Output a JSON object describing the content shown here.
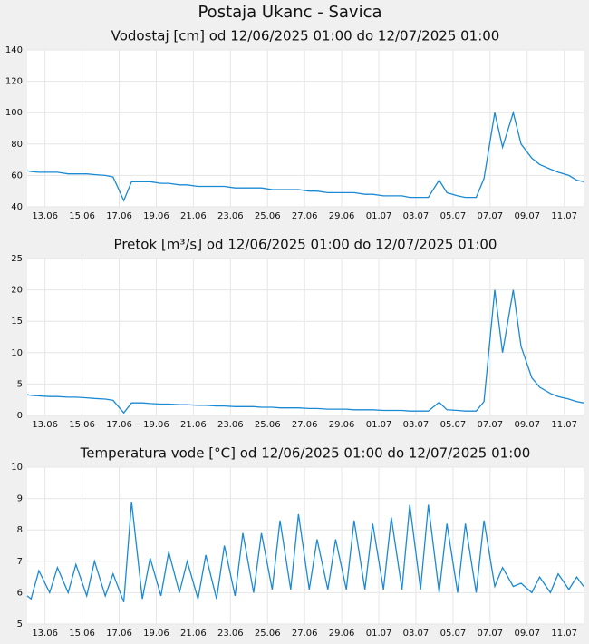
{
  "title": "Postaja Ukanc - Savica",
  "chart_data": [
    {
      "type": "line",
      "title": "Vodostaj [cm] od 12/06/2025 01:00 do 12/07/2025 01:00",
      "color": "#1a8ad4",
      "grid": true,
      "x": [
        0.04,
        0.25,
        0.67,
        1.25,
        1.67,
        2.25,
        2.67,
        3.25,
        3.67,
        4.25,
        4.67,
        5.25,
        5.67,
        6.25,
        6.67,
        7.25,
        7.67,
        8.25,
        8.67,
        9.25,
        9.67,
        10.25,
        10.67,
        11.25,
        11.67,
        12.25,
        12.67,
        13.25,
        13.67,
        14.25,
        14.67,
        15.25,
        15.67,
        16.25,
        16.67,
        17.25,
        17.67,
        18.25,
        18.67,
        19.25,
        19.67,
        20.25,
        20.67,
        21.25,
        21.67,
        22.25,
        22.67,
        23.25,
        23.67,
        24.25,
        24.67,
        25.25,
        25.67,
        26.25,
        26.67,
        27.25,
        27.67,
        28.25,
        28.67,
        29.25,
        29.67,
        30.04
      ],
      "values": [
        63,
        62.5,
        62,
        62,
        62,
        61,
        61,
        61,
        60.5,
        60,
        59,
        44,
        56,
        56,
        56,
        55,
        55,
        54,
        54,
        53,
        53,
        53,
        53,
        52,
        52,
        52,
        52,
        51,
        51,
        51,
        51,
        50,
        50,
        49,
        49,
        49,
        49,
        48,
        48,
        47,
        47,
        47,
        46,
        46,
        46,
        57,
        49,
        47,
        46,
        46,
        58,
        100,
        78,
        100,
        80,
        71,
        67,
        64,
        62,
        60,
        57,
        56
      ],
      "xlim": [
        0.04,
        30.04
      ],
      "xticks": [
        {
          "value": 1,
          "label": "13.06"
        },
        {
          "value": 3,
          "label": "15.06"
        },
        {
          "value": 5,
          "label": "17.06"
        },
        {
          "value": 7,
          "label": "19.06"
        },
        {
          "value": 9,
          "label": "21.06"
        },
        {
          "value": 11,
          "label": "23.06"
        },
        {
          "value": 13,
          "label": "25.06"
        },
        {
          "value": 15,
          "label": "27.06"
        },
        {
          "value": 17,
          "label": "29.06"
        },
        {
          "value": 19,
          "label": "01.07"
        },
        {
          "value": 21,
          "label": "03.07"
        },
        {
          "value": 23,
          "label": "05.07"
        },
        {
          "value": 25,
          "label": "07.07"
        },
        {
          "value": 27,
          "label": "09.07"
        },
        {
          "value": 29,
          "label": "11.07"
        }
      ],
      "ylim": [
        40,
        140
      ],
      "yticks": [
        40,
        60,
        80,
        100,
        120,
        140
      ]
    },
    {
      "type": "line",
      "title": "Pretok [m³/s] od 12/06/2025 01:00 do 12/07/2025 01:00",
      "color": "#1a8ad4",
      "grid": true,
      "x": [
        0.04,
        0.25,
        0.67,
        1.25,
        1.67,
        2.25,
        2.67,
        3.25,
        3.67,
        4.25,
        4.67,
        5.25,
        5.67,
        6.25,
        6.67,
        7.25,
        7.67,
        8.25,
        8.67,
        9.25,
        9.67,
        10.25,
        10.67,
        11.25,
        11.67,
        12.25,
        12.67,
        13.25,
        13.67,
        14.25,
        14.67,
        15.25,
        15.67,
        16.25,
        16.67,
        17.25,
        17.67,
        18.25,
        18.67,
        19.25,
        19.67,
        20.25,
        20.67,
        21.25,
        21.67,
        22.25,
        22.67,
        23.25,
        23.67,
        24.25,
        24.67,
        25.25,
        25.67,
        26.25,
        26.67,
        27.25,
        27.67,
        28.25,
        28.67,
        29.25,
        29.67,
        30.04
      ],
      "values": [
        3.3,
        3.2,
        3.1,
        3.0,
        3.0,
        2.9,
        2.9,
        2.8,
        2.7,
        2.6,
        2.4,
        0.4,
        2.0,
        2.0,
        1.9,
        1.8,
        1.8,
        1.7,
        1.7,
        1.6,
        1.6,
        1.5,
        1.5,
        1.4,
        1.4,
        1.4,
        1.3,
        1.3,
        1.2,
        1.2,
        1.2,
        1.1,
        1.1,
        1.0,
        1.0,
        1.0,
        0.9,
        0.9,
        0.9,
        0.8,
        0.8,
        0.8,
        0.7,
        0.7,
        0.7,
        2.1,
        0.9,
        0.8,
        0.7,
        0.7,
        2.2,
        20,
        10,
        20,
        11,
        6,
        4.5,
        3.5,
        3.0,
        2.6,
        2.2,
        2.0
      ],
      "xlim": [
        0.04,
        30.04
      ],
      "xticks": [
        {
          "value": 1,
          "label": "13.06"
        },
        {
          "value": 3,
          "label": "15.06"
        },
        {
          "value": 5,
          "label": "17.06"
        },
        {
          "value": 7,
          "label": "19.06"
        },
        {
          "value": 9,
          "label": "21.06"
        },
        {
          "value": 11,
          "label": "23.06"
        },
        {
          "value": 13,
          "label": "25.06"
        },
        {
          "value": 15,
          "label": "27.06"
        },
        {
          "value": 17,
          "label": "29.06"
        },
        {
          "value": 19,
          "label": "01.07"
        },
        {
          "value": 21,
          "label": "03.07"
        },
        {
          "value": 23,
          "label": "05.07"
        },
        {
          "value": 25,
          "label": "07.07"
        },
        {
          "value": 27,
          "label": "09.07"
        },
        {
          "value": 29,
          "label": "11.07"
        }
      ],
      "ylim": [
        0,
        25
      ],
      "yticks": [
        0,
        5,
        10,
        15,
        20,
        25
      ]
    },
    {
      "type": "line",
      "title": "Temperatura vode [°C] od 12/06/2025 01:00 do 12/07/2025 01:00",
      "color": "#1a8ad4",
      "grid": true,
      "x": [
        0.04,
        0.25,
        0.67,
        1.25,
        1.67,
        2.25,
        2.67,
        3.25,
        3.67,
        4.25,
        4.67,
        5.25,
        5.67,
        6.25,
        6.67,
        7.25,
        7.67,
        8.25,
        8.67,
        9.25,
        9.67,
        10.25,
        10.67,
        11.25,
        11.67,
        12.25,
        12.67,
        13.25,
        13.67,
        14.25,
        14.67,
        15.25,
        15.67,
        16.25,
        16.67,
        17.25,
        17.67,
        18.25,
        18.67,
        19.25,
        19.67,
        20.25,
        20.67,
        21.25,
        21.67,
        22.25,
        22.67,
        23.25,
        23.67,
        24.25,
        24.67,
        25.25,
        25.67,
        26.25,
        26.67,
        27.25,
        27.67,
        28.25,
        28.67,
        29.25,
        29.67,
        30.04
      ],
      "values": [
        5.9,
        5.8,
        6.7,
        6.0,
        6.8,
        6.0,
        6.9,
        5.9,
        7.0,
        5.9,
        6.6,
        5.7,
        8.9,
        5.8,
        7.1,
        5.9,
        7.3,
        6.0,
        7.0,
        5.8,
        7.2,
        5.8,
        7.5,
        5.9,
        7.9,
        6.0,
        7.9,
        6.1,
        8.3,
        6.1,
        8.5,
        6.1,
        7.7,
        6.1,
        7.7,
        6.1,
        8.3,
        6.1,
        8.2,
        6.1,
        8.4,
        6.1,
        8.8,
        6.1,
        8.8,
        6.0,
        8.2,
        6.0,
        8.2,
        6.0,
        8.3,
        6.2,
        6.8,
        6.2,
        6.3,
        6.0,
        6.5,
        6.0,
        6.6,
        6.1,
        6.5,
        6.2
      ],
      "xlim": [
        0.04,
        30.04
      ],
      "xticks": [
        {
          "value": 1,
          "label": "13.06"
        },
        {
          "value": 3,
          "label": "15.06"
        },
        {
          "value": 5,
          "label": "17.06"
        },
        {
          "value": 7,
          "label": "19.06"
        },
        {
          "value": 9,
          "label": "21.06"
        },
        {
          "value": 11,
          "label": "23.06"
        },
        {
          "value": 13,
          "label": "25.06"
        },
        {
          "value": 15,
          "label": "27.06"
        },
        {
          "value": 17,
          "label": "29.06"
        },
        {
          "value": 19,
          "label": "01.07"
        },
        {
          "value": 21,
          "label": "03.07"
        },
        {
          "value": 23,
          "label": "05.07"
        },
        {
          "value": 25,
          "label": "07.07"
        },
        {
          "value": 27,
          "label": "09.07"
        },
        {
          "value": 29,
          "label": "11.07"
        }
      ],
      "ylim": [
        5,
        10
      ],
      "yticks": [
        5,
        6,
        7,
        8,
        9,
        10
      ]
    }
  ]
}
